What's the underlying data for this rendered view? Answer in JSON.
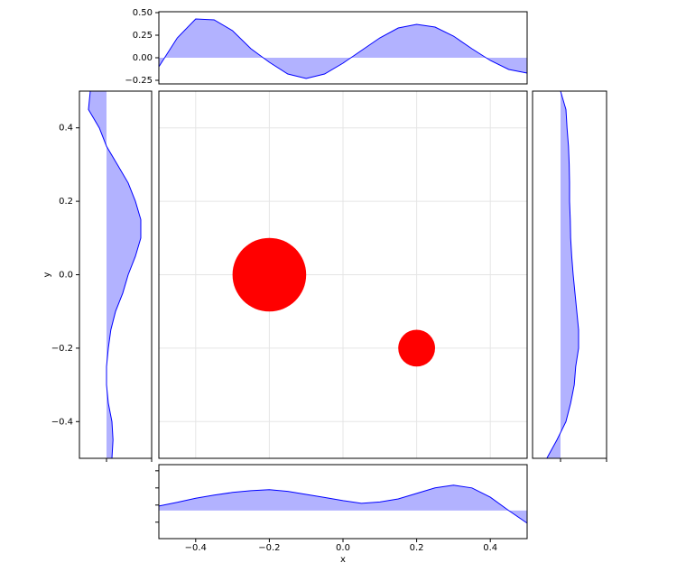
{
  "chart_data": [
    {
      "type": "scatter",
      "xlabel": "x",
      "ylabel": "y",
      "color": "#ff0000",
      "grid": true,
      "x": [
        -0.2,
        0.2
      ],
      "y": [
        0,
        -0.2
      ],
      "sizes": [
        0.1,
        0.05
      ],
      "xlim": [
        -0.5,
        0.5
      ],
      "ylim": [
        -0.5,
        0.5
      ],
      "xticks": [
        {
          "value": -0.4,
          "label": "−0.4"
        },
        {
          "value": -0.2,
          "label": "−0.2"
        },
        {
          "value": 0,
          "label": "0.0"
        },
        0.2,
        0.4
      ],
      "yticks": [
        {
          "value": -0.4,
          "label": "−0.4"
        },
        {
          "value": -0.2,
          "label": "−0.2"
        },
        {
          "value": 0,
          "label": "0.0"
        },
        0.2,
        0.4
      ]
    },
    {
      "type": "area",
      "position": "top",
      "color": "#0000ff",
      "x": [
        -0.5,
        -0.45,
        -0.4,
        -0.35,
        -0.3,
        -0.25,
        -0.2,
        -0.15,
        -0.1,
        -0.05,
        0,
        0.05,
        0.1,
        0.15,
        0.2,
        0.25,
        0.3,
        0.35,
        0.4,
        0.45,
        0.5
      ],
      "values": [
        -0.1,
        0.22,
        0.43,
        0.42,
        0.3,
        0.1,
        -0.05,
        -0.18,
        -0.23,
        -0.18,
        -0.06,
        0.08,
        0.22,
        0.33,
        0.37,
        0.34,
        0.24,
        0.1,
        -0.03,
        -0.13,
        -0.17
      ],
      "ylim": [
        -0.29,
        0.51
      ],
      "yticks": [
        {
          "value": -0.25,
          "label": "−0.25"
        },
        {
          "value": 0,
          "label": "0.00"
        },
        {
          "value": 0.25,
          "label": "0.25"
        },
        {
          "value": 0.5,
          "label": "0.50"
        }
      ]
    },
    {
      "type": "area",
      "position": "bottom",
      "color": "#0000ff",
      "x": [
        -0.5,
        -0.45,
        -0.4,
        -0.35,
        -0.3,
        -0.25,
        -0.2,
        -0.15,
        -0.1,
        -0.05,
        0,
        0.05,
        0.1,
        0.15,
        0.2,
        0.25,
        0.3,
        0.35,
        0.4,
        0.45,
        0.5
      ],
      "values": [
        0.13,
        0.24,
        0.36,
        0.45,
        0.53,
        0.58,
        0.61,
        0.56,
        0.47,
        0.38,
        0.29,
        0.21,
        0.25,
        0.34,
        0.5,
        0.66,
        0.74,
        0.66,
        0.39,
        0,
        -0.37
      ],
      "ylim": [
        -0.82,
        1.34
      ],
      "yticks": [
        -0.34,
        0.16,
        0.66,
        1.16
      ]
    },
    {
      "type": "area",
      "position": "left",
      "color": "#0000ff",
      "y": [
        0.5,
        0.45,
        0.4,
        0.35,
        0.3,
        0.25,
        0.2,
        0.15,
        0.1,
        0.05,
        0,
        -0.05,
        -0.1,
        -0.15,
        -0.2,
        -0.25,
        -0.3,
        -0.35,
        -0.4,
        -0.45,
        -0.5
      ],
      "values": [
        -0.45,
        -0.5,
        -0.2,
        0,
        0.3,
        0.6,
        0.8,
        0.95,
        0.95,
        0.8,
        0.6,
        0.45,
        0.25,
        0.12,
        0.05,
        0,
        0,
        0.05,
        0.15,
        0.18,
        0.15
      ],
      "xlim": [
        -0.75,
        1.25
      ],
      "xticks": [
        0,
        1.25
      ]
    },
    {
      "type": "area",
      "position": "right",
      "color": "#0000ff",
      "y": [
        0.5,
        0.45,
        0.4,
        0.35,
        0.3,
        0.25,
        0.2,
        0.15,
        0.1,
        0.05,
        0,
        -0.05,
        -0.1,
        -0.15,
        -0.2,
        -0.25,
        -0.3,
        -0.35,
        -0.4,
        -0.45,
        -0.5
      ],
      "values": [
        0,
        0.15,
        0.18,
        0.22,
        0.24,
        0.25,
        0.25,
        0.27,
        0.28,
        0.31,
        0.35,
        0.4,
        0.45,
        0.5,
        0.5,
        0.42,
        0.38,
        0.28,
        0.15,
        -0.1,
        -0.38
      ],
      "xlim": [
        -0.775,
        1.275
      ],
      "xticks": [
        0,
        1.275
      ]
    }
  ]
}
